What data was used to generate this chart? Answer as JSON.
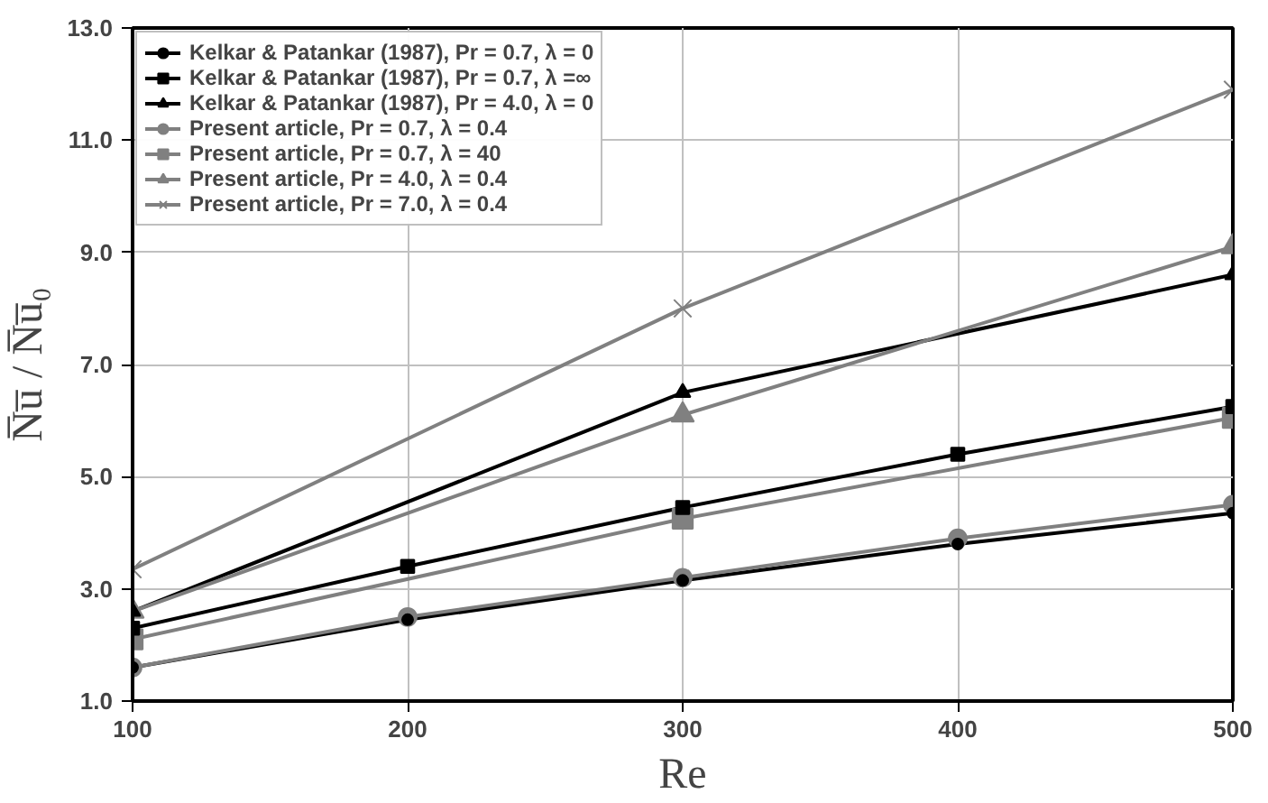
{
  "chart_data": {
    "type": "line",
    "xlabel": "Re",
    "ylabel": "N̅u̅ / N̅u̅₀",
    "xlim": [
      100,
      500
    ],
    "ylim": [
      1,
      13
    ],
    "xticks": [
      100,
      200,
      300,
      400,
      500
    ],
    "yticks": [
      {
        "value": 1,
        "label": "1.0"
      },
      {
        "value": 3,
        "label": "3.0"
      },
      {
        "value": 5,
        "label": "5.0"
      },
      {
        "value": 7,
        "label": "7.0"
      },
      {
        "value": 9,
        "label": "9.0"
      },
      {
        "value": 11,
        "label": "11.0"
      },
      {
        "value": 13,
        "label": "13.0"
      }
    ],
    "grid": true,
    "legend": "top left",
    "line_style": "solid",
    "series": [
      {
        "name": "Kelkar & Patankar (1987), Pr = 0.7, λ = 0",
        "color": "#000000",
        "marker": "circle",
        "x": [
          100,
          200,
          300,
          400,
          500
        ],
        "values": [
          1.6,
          2.45,
          3.15,
          3.8,
          4.35
        ]
      },
      {
        "name": "Kelkar & Patankar (1987), Pr = 0.7, λ =∞",
        "color": "#000000",
        "marker": "square",
        "x": [
          100,
          200,
          300,
          400,
          500
        ],
        "values": [
          2.3,
          3.4,
          4.45,
          5.4,
          6.25
        ]
      },
      {
        "name": "Kelkar & Patankar (1987), Pr = 4.0, λ = 0",
        "color": "#000000",
        "marker": "triangle",
        "x": [
          100,
          300,
          500
        ],
        "values": [
          2.6,
          6.5,
          8.6
        ]
      },
      {
        "name": "Present article, Pr = 0.7, λ = 0.4",
        "color": "#808080",
        "marker": "circle",
        "x": [
          100,
          200,
          300,
          400,
          500
        ],
        "values": [
          1.6,
          2.5,
          3.2,
          3.9,
          4.5
        ]
      },
      {
        "name": "Present article, Pr = 0.7, λ = 40",
        "color": "#808080",
        "marker": "square",
        "x": [
          100,
          300,
          500
        ],
        "values": [
          2.1,
          4.25,
          6.05
        ]
      },
      {
        "name": "Present article, Pr = 4.0, λ = 0.4",
        "color": "#808080",
        "marker": "triangle",
        "x": [
          100,
          300,
          500
        ],
        "values": [
          2.6,
          6.1,
          9.1
        ]
      },
      {
        "name": "Present article, Pr = 7.0, λ = 0.4",
        "color": "#808080",
        "marker": "cross",
        "x": [
          100,
          300,
          500
        ],
        "values": [
          3.35,
          8.0,
          11.9
        ]
      }
    ]
  }
}
